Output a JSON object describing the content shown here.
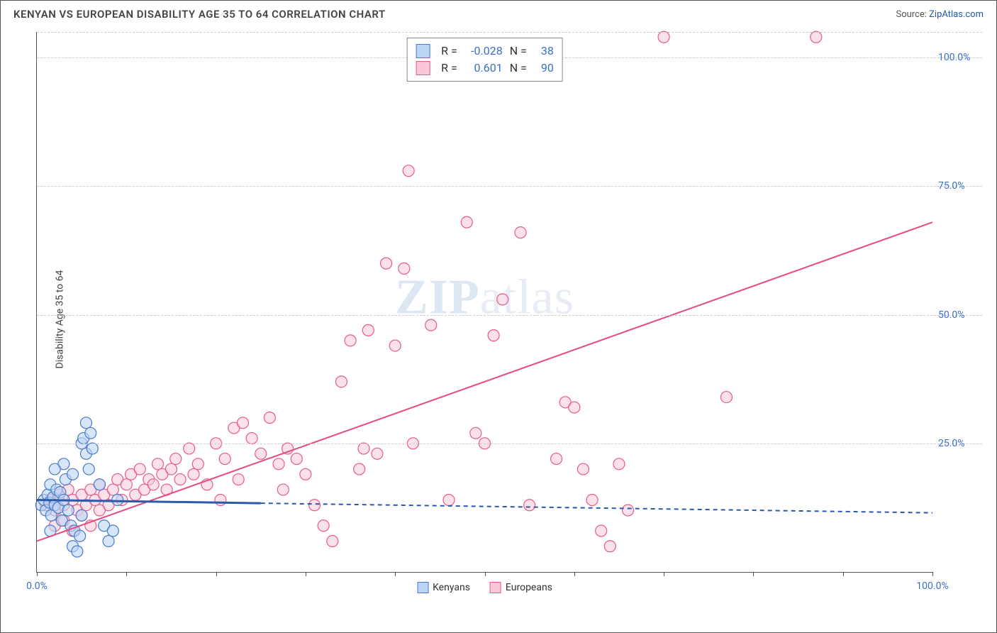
{
  "header": {
    "title": "KENYAN VS EUROPEAN DISABILITY AGE 35 TO 64 CORRELATION CHART",
    "source_prefix": "Source: ",
    "source_name": "ZipAtlas.com"
  },
  "chart": {
    "type": "scatter",
    "ylabel": "Disability Age 35 to 64",
    "watermark_a": "ZIP",
    "watermark_b": "atlas",
    "background_color": "#ffffff",
    "grid_color": "#cccccc",
    "axis_color": "#555555",
    "label_color": "#3a6fc9",
    "xlim": [
      0,
      100
    ],
    "ylim": [
      0,
      105
    ],
    "x_ticks": [
      0,
      10,
      20,
      30,
      40,
      50,
      60,
      70,
      80,
      90,
      100
    ],
    "x_tick_labels": {
      "0": "0.0%",
      "100": "100.0%"
    },
    "y_ticks": [
      25,
      50,
      75,
      100
    ],
    "y_tick_labels": [
      "25.0%",
      "50.0%",
      "75.0%",
      "100.0%"
    ],
    "y_grid_extra": 105,
    "marker_radius": 8,
    "marker_stroke_width": 1.2,
    "line_width": 2,
    "series": [
      {
        "key": "kenyans",
        "name": "Kenyans",
        "fill": "#bcd5f5",
        "fill_opacity": 0.6,
        "stroke": "#4a7ac7",
        "line_color": "#2a5aa8",
        "line_dash": "6,5",
        "line_solid_until_x": 25,
        "R": "-0.028",
        "N": "38",
        "trend": {
          "x1": 0,
          "y1": 14,
          "x2": 100,
          "y2": 11.5
        },
        "points": [
          [
            0.5,
            13
          ],
          [
            0.8,
            14
          ],
          [
            1,
            12
          ],
          [
            1.2,
            15
          ],
          [
            1.4,
            13.5
          ],
          [
            1.5,
            17
          ],
          [
            1.6,
            11
          ],
          [
            1.8,
            14.5
          ],
          [
            2,
            13
          ],
          [
            2.2,
            16
          ],
          [
            2.4,
            12.5
          ],
          [
            2.6,
            15.5
          ],
          [
            2.8,
            10
          ],
          [
            3,
            14
          ],
          [
            3.2,
            18
          ],
          [
            3.5,
            12
          ],
          [
            3.8,
            9
          ],
          [
            4,
            5
          ],
          [
            4.2,
            8
          ],
          [
            4.5,
            4
          ],
          [
            4.8,
            7
          ],
          [
            5,
            11
          ],
          [
            5,
            25
          ],
          [
            5.2,
            26
          ],
          [
            5.5,
            23
          ],
          [
            5.5,
            29
          ],
          [
            5.8,
            20
          ],
          [
            6,
            27
          ],
          [
            6.2,
            24
          ],
          [
            7,
            17
          ],
          [
            7.5,
            9
          ],
          [
            8,
            6
          ],
          [
            8.5,
            8
          ],
          [
            9,
            14
          ],
          [
            3,
            21
          ],
          [
            4,
            19
          ],
          [
            2,
            20
          ],
          [
            1.5,
            8
          ]
        ]
      },
      {
        "key": "europeans",
        "name": "Europeans",
        "fill": "#f8c8d8",
        "fill_opacity": 0.55,
        "stroke": "#e85a8a",
        "line_color": "#e84a7a",
        "line_dash": "",
        "line_solid_until_x": 100,
        "R": "0.601",
        "N": "90",
        "trend": {
          "x1": 0,
          "y1": 6,
          "x2": 100,
          "y2": 68
        },
        "points": [
          [
            1,
            13
          ],
          [
            1.5,
            14
          ],
          [
            2,
            12
          ],
          [
            2.5,
            15
          ],
          [
            3,
            13
          ],
          [
            3.5,
            16
          ],
          [
            4,
            14
          ],
          [
            4.5,
            12
          ],
          [
            5,
            15
          ],
          [
            5.5,
            13
          ],
          [
            6,
            16
          ],
          [
            6.5,
            14
          ],
          [
            7,
            17
          ],
          [
            7.5,
            15
          ],
          [
            8,
            13
          ],
          [
            8.5,
            16
          ],
          [
            9,
            18
          ],
          [
            9.5,
            14
          ],
          [
            10,
            17
          ],
          [
            10.5,
            19
          ],
          [
            11,
            15
          ],
          [
            11.5,
            20
          ],
          [
            12,
            16
          ],
          [
            12.5,
            18
          ],
          [
            13,
            17
          ],
          [
            13.5,
            21
          ],
          [
            14,
            19
          ],
          [
            14.5,
            16
          ],
          [
            15,
            20
          ],
          [
            15.5,
            22
          ],
          [
            16,
            18
          ],
          [
            17,
            24
          ],
          [
            17.5,
            19
          ],
          [
            18,
            21
          ],
          [
            19,
            17
          ],
          [
            20,
            25
          ],
          [
            20.5,
            14
          ],
          [
            21,
            22
          ],
          [
            22,
            28
          ],
          [
            22.5,
            18
          ],
          [
            23,
            29
          ],
          [
            24,
            26
          ],
          [
            25,
            23
          ],
          [
            26,
            30
          ],
          [
            27,
            21
          ],
          [
            27.5,
            16
          ],
          [
            28,
            24
          ],
          [
            29,
            22
          ],
          [
            30,
            19
          ],
          [
            31,
            13
          ],
          [
            32,
            9
          ],
          [
            33,
            6
          ],
          [
            34,
            37
          ],
          [
            35,
            45
          ],
          [
            36,
            20
          ],
          [
            36.5,
            24
          ],
          [
            37,
            47
          ],
          [
            38,
            23
          ],
          [
            39,
            60
          ],
          [
            40,
            44
          ],
          [
            41,
            59
          ],
          [
            41.5,
            78
          ],
          [
            42,
            25
          ],
          [
            44,
            48
          ],
          [
            46,
            14
          ],
          [
            48,
            68
          ],
          [
            49,
            27
          ],
          [
            50,
            25
          ],
          [
            51,
            46
          ],
          [
            52,
            53
          ],
          [
            54,
            66
          ],
          [
            55,
            13
          ],
          [
            58,
            22
          ],
          [
            59,
            33
          ],
          [
            60,
            32
          ],
          [
            61,
            20
          ],
          [
            62,
            14
          ],
          [
            63,
            8
          ],
          [
            64,
            5
          ],
          [
            65,
            21
          ],
          [
            66,
            12
          ],
          [
            70,
            104
          ],
          [
            77,
            34
          ],
          [
            87,
            104
          ],
          [
            2,
            9
          ],
          [
            3,
            10
          ],
          [
            4,
            8
          ],
          [
            5,
            11
          ],
          [
            6,
            9
          ],
          [
            7,
            12
          ]
        ]
      }
    ],
    "top_legend": {
      "r_label": "R =",
      "n_label": "N ="
    },
    "bottom_legend": [
      "Kenyans",
      "Europeans"
    ]
  }
}
